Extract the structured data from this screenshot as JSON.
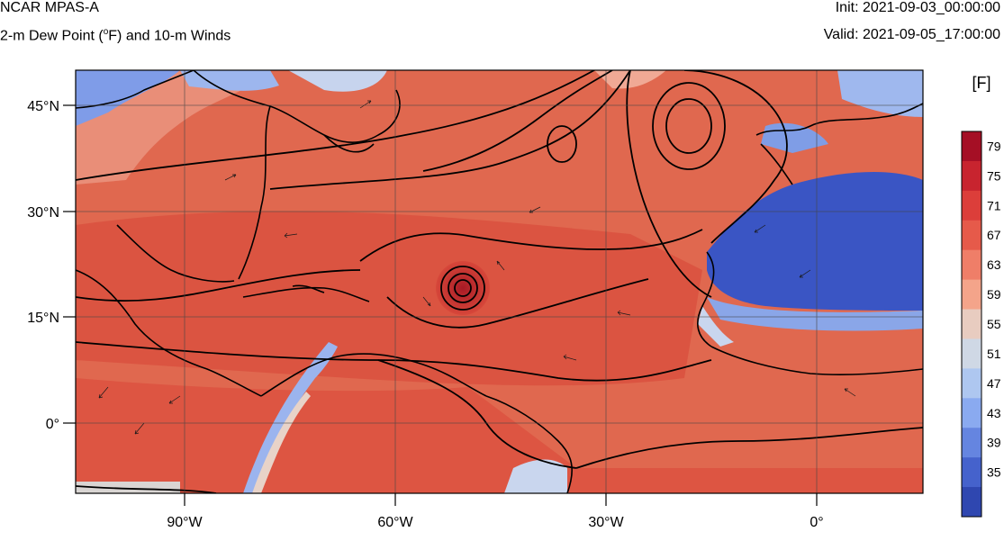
{
  "header": {
    "title": "NCAR MPAS-A",
    "subtitle_prefix": "2-m Dew Point (",
    "subtitle_degree": "o",
    "subtitle_suffix": "F) and 10-m Winds",
    "init": "Init: 2021-09-03_00:00:00",
    "valid": "Valid: 2021-09-05_17:00:00"
  },
  "axes": {
    "lat_labels": [
      "45°N",
      "30°N",
      "15°N",
      "0°"
    ],
    "lon_labels": [
      "90°W",
      "60°W",
      "30°W",
      "0°"
    ]
  },
  "colorbar": {
    "unit": "[F]",
    "labels": [
      "79",
      "75",
      "71",
      "67",
      "63",
      "59",
      "55",
      "51",
      "47",
      "43",
      "39",
      "35"
    ],
    "colors": [
      "#a50f25",
      "#c8242f",
      "#dc3e3a",
      "#e65a4a",
      "#ef7e68",
      "#f4a48a",
      "#e8ccc0",
      "#cfd8e5",
      "#aec7f0",
      "#8aaaf0",
      "#6585e0",
      "#4562cc",
      "#2f47b0"
    ]
  },
  "colors": {
    "ocean_warm": "#e0684f",
    "ocean_deep": "#d7473a",
    "land_dry": "#3f5ac8",
    "coast_cool": "#b8cdf0",
    "grid": "#444444"
  }
}
